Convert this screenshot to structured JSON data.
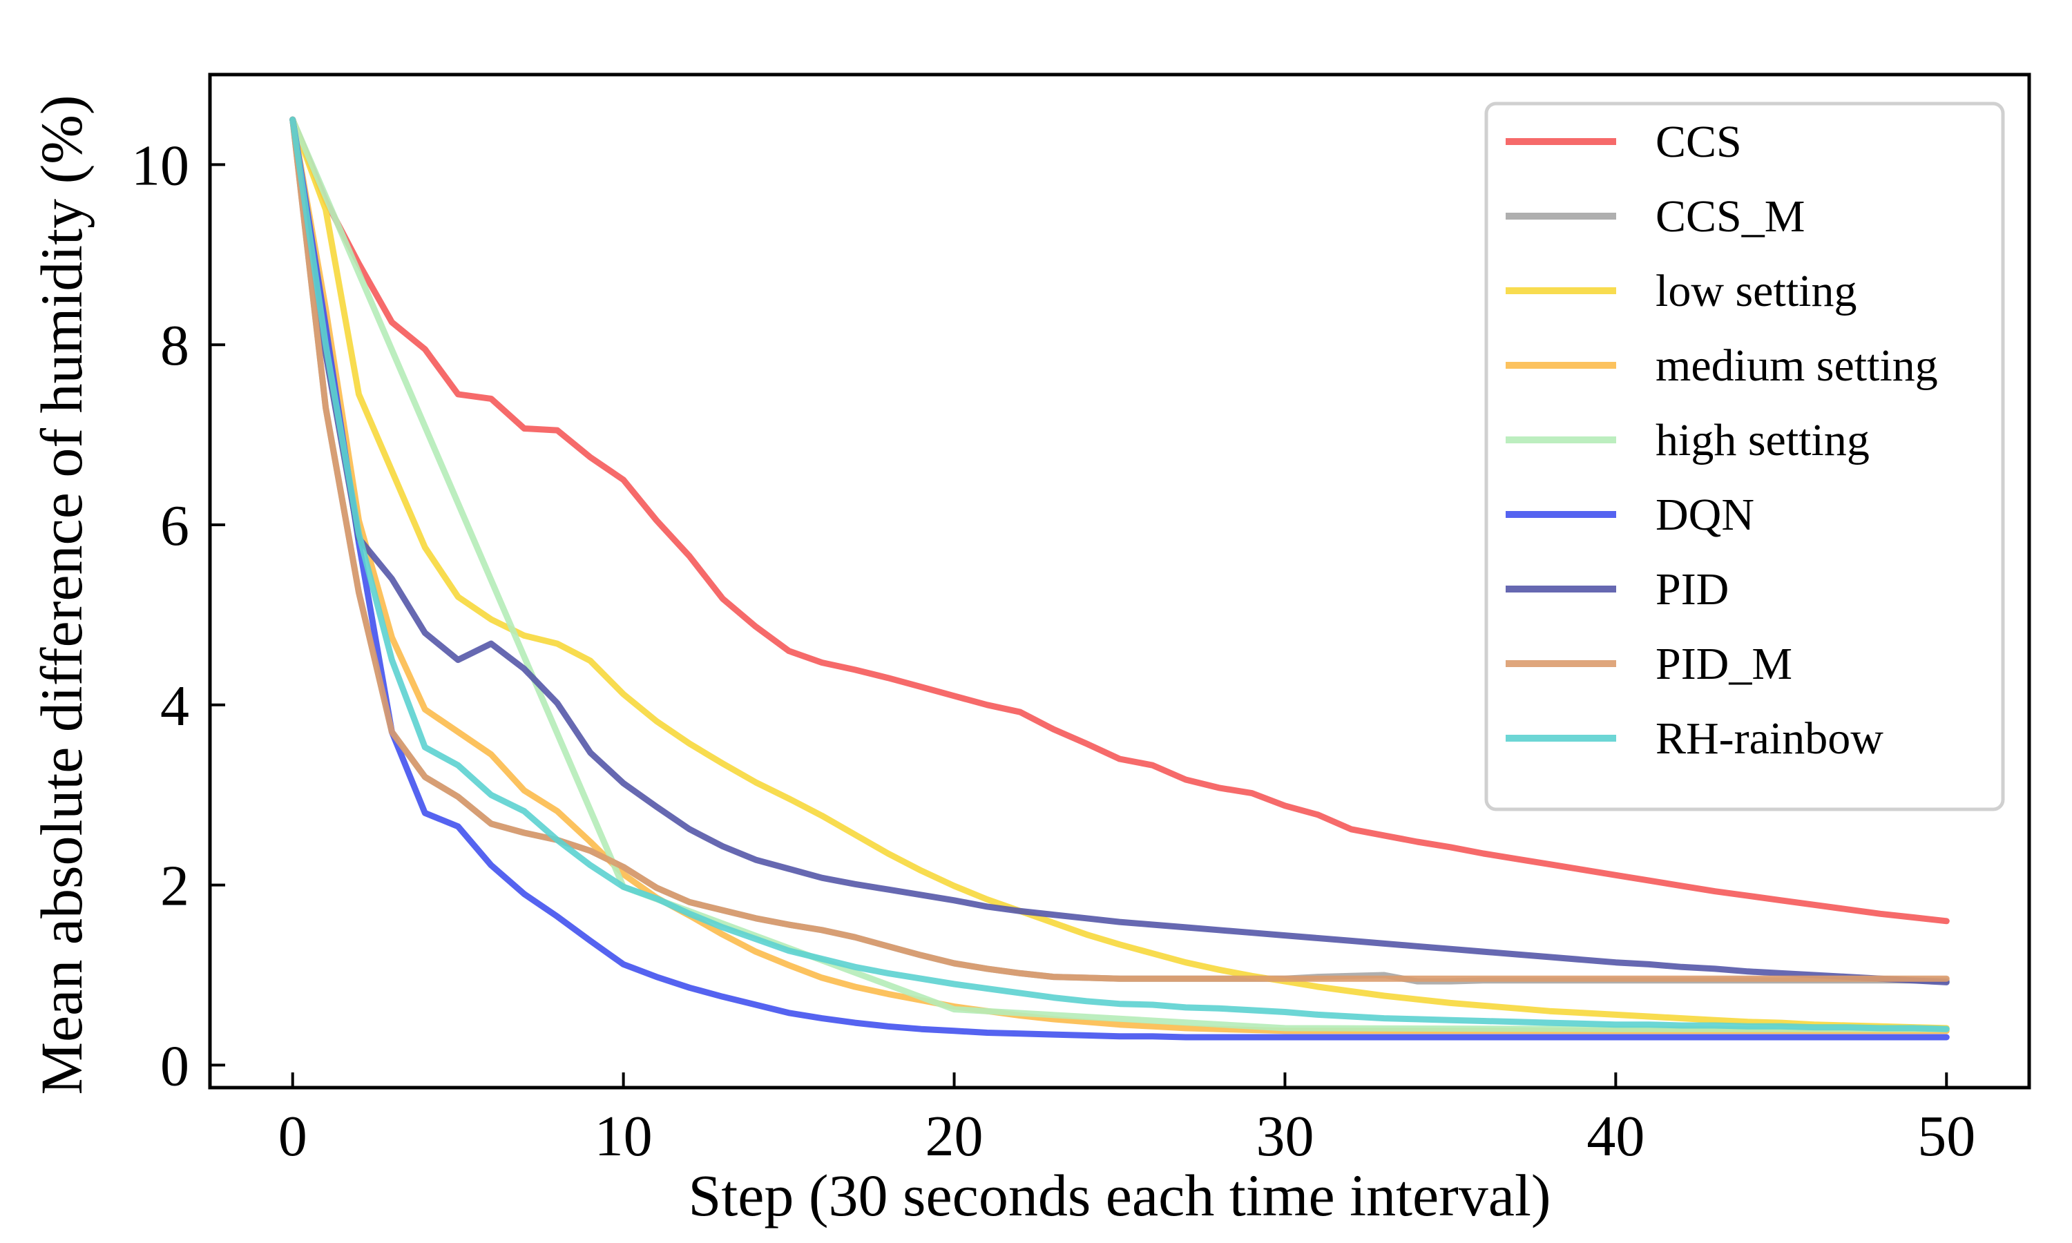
{
  "chart_data": {
    "type": "line",
    "title": "",
    "xlabel": "Step (30 seconds each time interval)",
    "ylabel": "Mean absolute difference of humidity (%)",
    "xlim": [
      -2.5,
      52.5
    ],
    "ylim": [
      -0.25,
      11.0
    ],
    "xticks": [
      0,
      10,
      20,
      30,
      40,
      50
    ],
    "yticks": [
      0,
      2,
      4,
      6,
      8,
      10
    ],
    "grid": false,
    "legend_position": "top-right",
    "series": [
      {
        "name": "CCS",
        "color": "#f55a5a",
        "x": [
          0,
          1,
          2,
          3,
          4,
          5,
          6,
          7,
          8,
          9,
          10,
          11,
          12,
          13,
          14,
          15,
          16,
          17,
          18,
          19,
          20,
          21,
          22,
          23,
          24,
          25,
          26,
          27,
          28,
          29,
          30,
          31,
          32,
          33,
          34,
          35,
          36,
          37,
          38,
          39,
          40,
          41,
          42,
          43,
          44,
          45,
          46,
          47,
          48,
          49,
          50
        ],
        "y": [
          10.5,
          9.6,
          8.9,
          8.25,
          7.95,
          7.45,
          7.4,
          7.07,
          7.05,
          6.75,
          6.5,
          6.05,
          5.65,
          5.18,
          4.87,
          4.6,
          4.47,
          4.39,
          4.3,
          4.2,
          4.1,
          4.0,
          3.92,
          3.73,
          3.57,
          3.4,
          3.33,
          3.17,
          3.08,
          3.02,
          2.88,
          2.78,
          2.62,
          2.55,
          2.48,
          2.42,
          2.35,
          2.29,
          2.23,
          2.17,
          2.11,
          2.05,
          1.99,
          1.93,
          1.88,
          1.83,
          1.78,
          1.73,
          1.68,
          1.64,
          1.6
        ]
      },
      {
        "name": "CCS_M",
        "color": "#a6a6a6",
        "x": [
          0,
          1,
          2,
          3,
          4,
          5,
          6,
          7,
          8,
          9,
          10,
          11,
          12,
          13,
          14,
          15,
          16,
          17,
          18,
          19,
          20,
          21,
          22,
          23,
          24,
          25,
          26,
          27,
          28,
          29,
          30,
          31,
          32,
          33,
          34,
          35,
          36,
          37,
          38,
          39,
          40,
          41,
          42,
          43,
          44,
          45,
          46,
          47,
          48,
          49,
          50
        ],
        "y": [
          10.5,
          7.3,
          5.25,
          3.7,
          3.2,
          2.98,
          2.68,
          2.58,
          2.5,
          2.38,
          2.2,
          1.97,
          1.81,
          1.72,
          1.63,
          1.56,
          1.5,
          1.42,
          1.32,
          1.22,
          1.13,
          1.07,
          1.02,
          0.98,
          0.97,
          0.96,
          0.96,
          0.96,
          0.96,
          0.96,
          0.96,
          0.98,
          0.99,
          1.0,
          0.93,
          0.93,
          0.94,
          0.94,
          0.94,
          0.94,
          0.94,
          0.94,
          0.94,
          0.94,
          0.94,
          0.94,
          0.94,
          0.94,
          0.94,
          0.94,
          0.94
        ]
      },
      {
        "name": "low setting",
        "color": "#f7d83c",
        "x": [
          0,
          1,
          2,
          3,
          4,
          5,
          6,
          7,
          8,
          9,
          10,
          11,
          12,
          13,
          14,
          15,
          16,
          17,
          18,
          19,
          20,
          21,
          22,
          23,
          24,
          25,
          26,
          27,
          28,
          29,
          30,
          31,
          32,
          33,
          34,
          35,
          36,
          37,
          38,
          39,
          40,
          41,
          42,
          43,
          44,
          45,
          46,
          47,
          48,
          49,
          50
        ],
        "y": [
          10.5,
          9.5,
          7.45,
          6.6,
          5.75,
          5.2,
          4.95,
          4.77,
          4.68,
          4.49,
          4.12,
          3.82,
          3.57,
          3.35,
          3.14,
          2.96,
          2.77,
          2.56,
          2.35,
          2.16,
          1.99,
          1.84,
          1.71,
          1.58,
          1.45,
          1.34,
          1.24,
          1.14,
          1.06,
          0.99,
          0.93,
          0.87,
          0.82,
          0.77,
          0.73,
          0.69,
          0.66,
          0.63,
          0.6,
          0.58,
          0.56,
          0.54,
          0.52,
          0.5,
          0.48,
          0.47,
          0.45,
          0.44,
          0.43,
          0.42,
          0.41
        ]
      },
      {
        "name": "medium setting",
        "color": "#fcbb4d",
        "x": [
          0,
          1,
          2,
          3,
          4,
          5,
          6,
          7,
          8,
          9,
          10,
          11,
          12,
          13,
          14,
          15,
          16,
          17,
          18,
          19,
          20,
          21,
          22,
          23,
          24,
          25,
          26,
          27,
          28,
          29,
          30,
          31,
          32,
          33,
          34,
          35,
          36,
          37,
          38,
          39,
          40,
          41,
          42,
          43,
          44,
          45,
          46,
          47,
          48,
          49,
          50
        ],
        "y": [
          10.5,
          8.4,
          6.05,
          4.75,
          3.95,
          3.7,
          3.45,
          3.05,
          2.82,
          2.48,
          2.12,
          1.86,
          1.66,
          1.45,
          1.26,
          1.11,
          0.97,
          0.87,
          0.79,
          0.72,
          0.65,
          0.6,
          0.55,
          0.51,
          0.48,
          0.45,
          0.43,
          0.41,
          0.4,
          0.39,
          0.38,
          0.38,
          0.38,
          0.38,
          0.38,
          0.38,
          0.38,
          0.38,
          0.38,
          0.38,
          0.38,
          0.38,
          0.38,
          0.38,
          0.38,
          0.38,
          0.38,
          0.38,
          0.38,
          0.38,
          0.38
        ]
      },
      {
        "name": "high setting",
        "color": "#b5ecb8",
        "x": [
          0,
          10,
          20,
          30,
          40,
          50
        ],
        "y": [
          10.5,
          1.98,
          0.62,
          0.41,
          0.4,
          0.4
        ]
      },
      {
        "name": "DQN",
        "color": "#4352ee",
        "x": [
          0,
          1,
          2,
          3,
          4,
          5,
          6,
          7,
          8,
          9,
          10,
          11,
          12,
          13,
          14,
          15,
          16,
          17,
          18,
          19,
          20,
          21,
          22,
          23,
          24,
          25,
          26,
          27,
          28,
          29,
          30,
          31,
          32,
          33,
          34,
          35,
          36,
          37,
          38,
          39,
          40,
          41,
          42,
          43,
          44,
          45,
          46,
          47,
          48,
          49,
          50
        ],
        "y": [
          10.5,
          8.2,
          5.8,
          3.7,
          2.8,
          2.65,
          2.22,
          1.9,
          1.65,
          1.38,
          1.12,
          0.98,
          0.86,
          0.76,
          0.67,
          0.58,
          0.52,
          0.47,
          0.43,
          0.4,
          0.38,
          0.36,
          0.35,
          0.34,
          0.33,
          0.32,
          0.32,
          0.31,
          0.31,
          0.31,
          0.31,
          0.31,
          0.31,
          0.31,
          0.31,
          0.31,
          0.31,
          0.31,
          0.31,
          0.31,
          0.31,
          0.31,
          0.31,
          0.31,
          0.31,
          0.31,
          0.31,
          0.31,
          0.31,
          0.31,
          0.31
        ]
      },
      {
        "name": "PID",
        "color": "#5558a9",
        "x": [
          0,
          1,
          2,
          3,
          4,
          5,
          6,
          7,
          8,
          9,
          10,
          11,
          12,
          13,
          14,
          15,
          16,
          17,
          18,
          19,
          20,
          21,
          22,
          23,
          24,
          25,
          26,
          27,
          28,
          29,
          30,
          31,
          32,
          33,
          34,
          35,
          36,
          37,
          38,
          39,
          40,
          41,
          42,
          43,
          44,
          45,
          46,
          47,
          48,
          49,
          50
        ],
        "y": [
          10.5,
          7.9,
          5.85,
          5.4,
          4.8,
          4.5,
          4.68,
          4.4,
          4.02,
          3.47,
          3.13,
          2.87,
          2.62,
          2.43,
          2.28,
          2.18,
          2.08,
          2.01,
          1.95,
          1.89,
          1.83,
          1.76,
          1.71,
          1.67,
          1.63,
          1.59,
          1.56,
          1.53,
          1.5,
          1.47,
          1.44,
          1.41,
          1.38,
          1.35,
          1.32,
          1.29,
          1.26,
          1.23,
          1.2,
          1.17,
          1.14,
          1.12,
          1.09,
          1.07,
          1.04,
          1.02,
          1.0,
          0.98,
          0.96,
          0.94,
          0.92
        ]
      },
      {
        "name": "PID_M",
        "color": "#dc9c6e",
        "x": [
          0,
          1,
          2,
          3,
          4,
          5,
          6,
          7,
          8,
          9,
          10,
          11,
          12,
          13,
          14,
          15,
          16,
          17,
          18,
          19,
          20,
          21,
          22,
          23,
          24,
          25,
          26,
          27,
          28,
          29,
          30,
          31,
          32,
          33,
          34,
          35,
          36,
          37,
          38,
          39,
          40,
          41,
          42,
          43,
          44,
          45,
          46,
          47,
          48,
          49,
          50
        ],
        "y": [
          10.5,
          7.3,
          5.25,
          3.7,
          3.2,
          2.98,
          2.68,
          2.58,
          2.5,
          2.38,
          2.2,
          1.97,
          1.81,
          1.72,
          1.63,
          1.56,
          1.5,
          1.42,
          1.32,
          1.22,
          1.13,
          1.07,
          1.02,
          0.98,
          0.97,
          0.96,
          0.96,
          0.96,
          0.96,
          0.96,
          0.96,
          0.96,
          0.96,
          0.96,
          0.96,
          0.96,
          0.96,
          0.96,
          0.96,
          0.96,
          0.96,
          0.96,
          0.96,
          0.96,
          0.96,
          0.96,
          0.96,
          0.96,
          0.96,
          0.96,
          0.96
        ]
      },
      {
        "name": "RH-rainbow",
        "color": "#5cd2d0",
        "x": [
          0,
          1,
          2,
          3,
          4,
          5,
          6,
          7,
          8,
          9,
          10,
          11,
          12,
          13,
          14,
          15,
          16,
          17,
          18,
          19,
          20,
          21,
          22,
          23,
          24,
          25,
          26,
          27,
          28,
          29,
          30,
          31,
          32,
          33,
          34,
          35,
          36,
          37,
          38,
          39,
          40,
          41,
          42,
          43,
          44,
          45,
          46,
          47,
          48,
          49,
          50
        ],
        "y": [
          10.5,
          8.0,
          5.9,
          4.5,
          3.53,
          3.33,
          3.0,
          2.82,
          2.5,
          2.22,
          1.98,
          1.85,
          1.68,
          1.53,
          1.4,
          1.27,
          1.18,
          1.09,
          1.02,
          0.96,
          0.9,
          0.85,
          0.8,
          0.75,
          0.71,
          0.68,
          0.67,
          0.64,
          0.63,
          0.61,
          0.59,
          0.56,
          0.54,
          0.52,
          0.51,
          0.5,
          0.49,
          0.48,
          0.47,
          0.46,
          0.45,
          0.45,
          0.44,
          0.44,
          0.43,
          0.43,
          0.42,
          0.42,
          0.41,
          0.41,
          0.4
        ]
      }
    ]
  }
}
